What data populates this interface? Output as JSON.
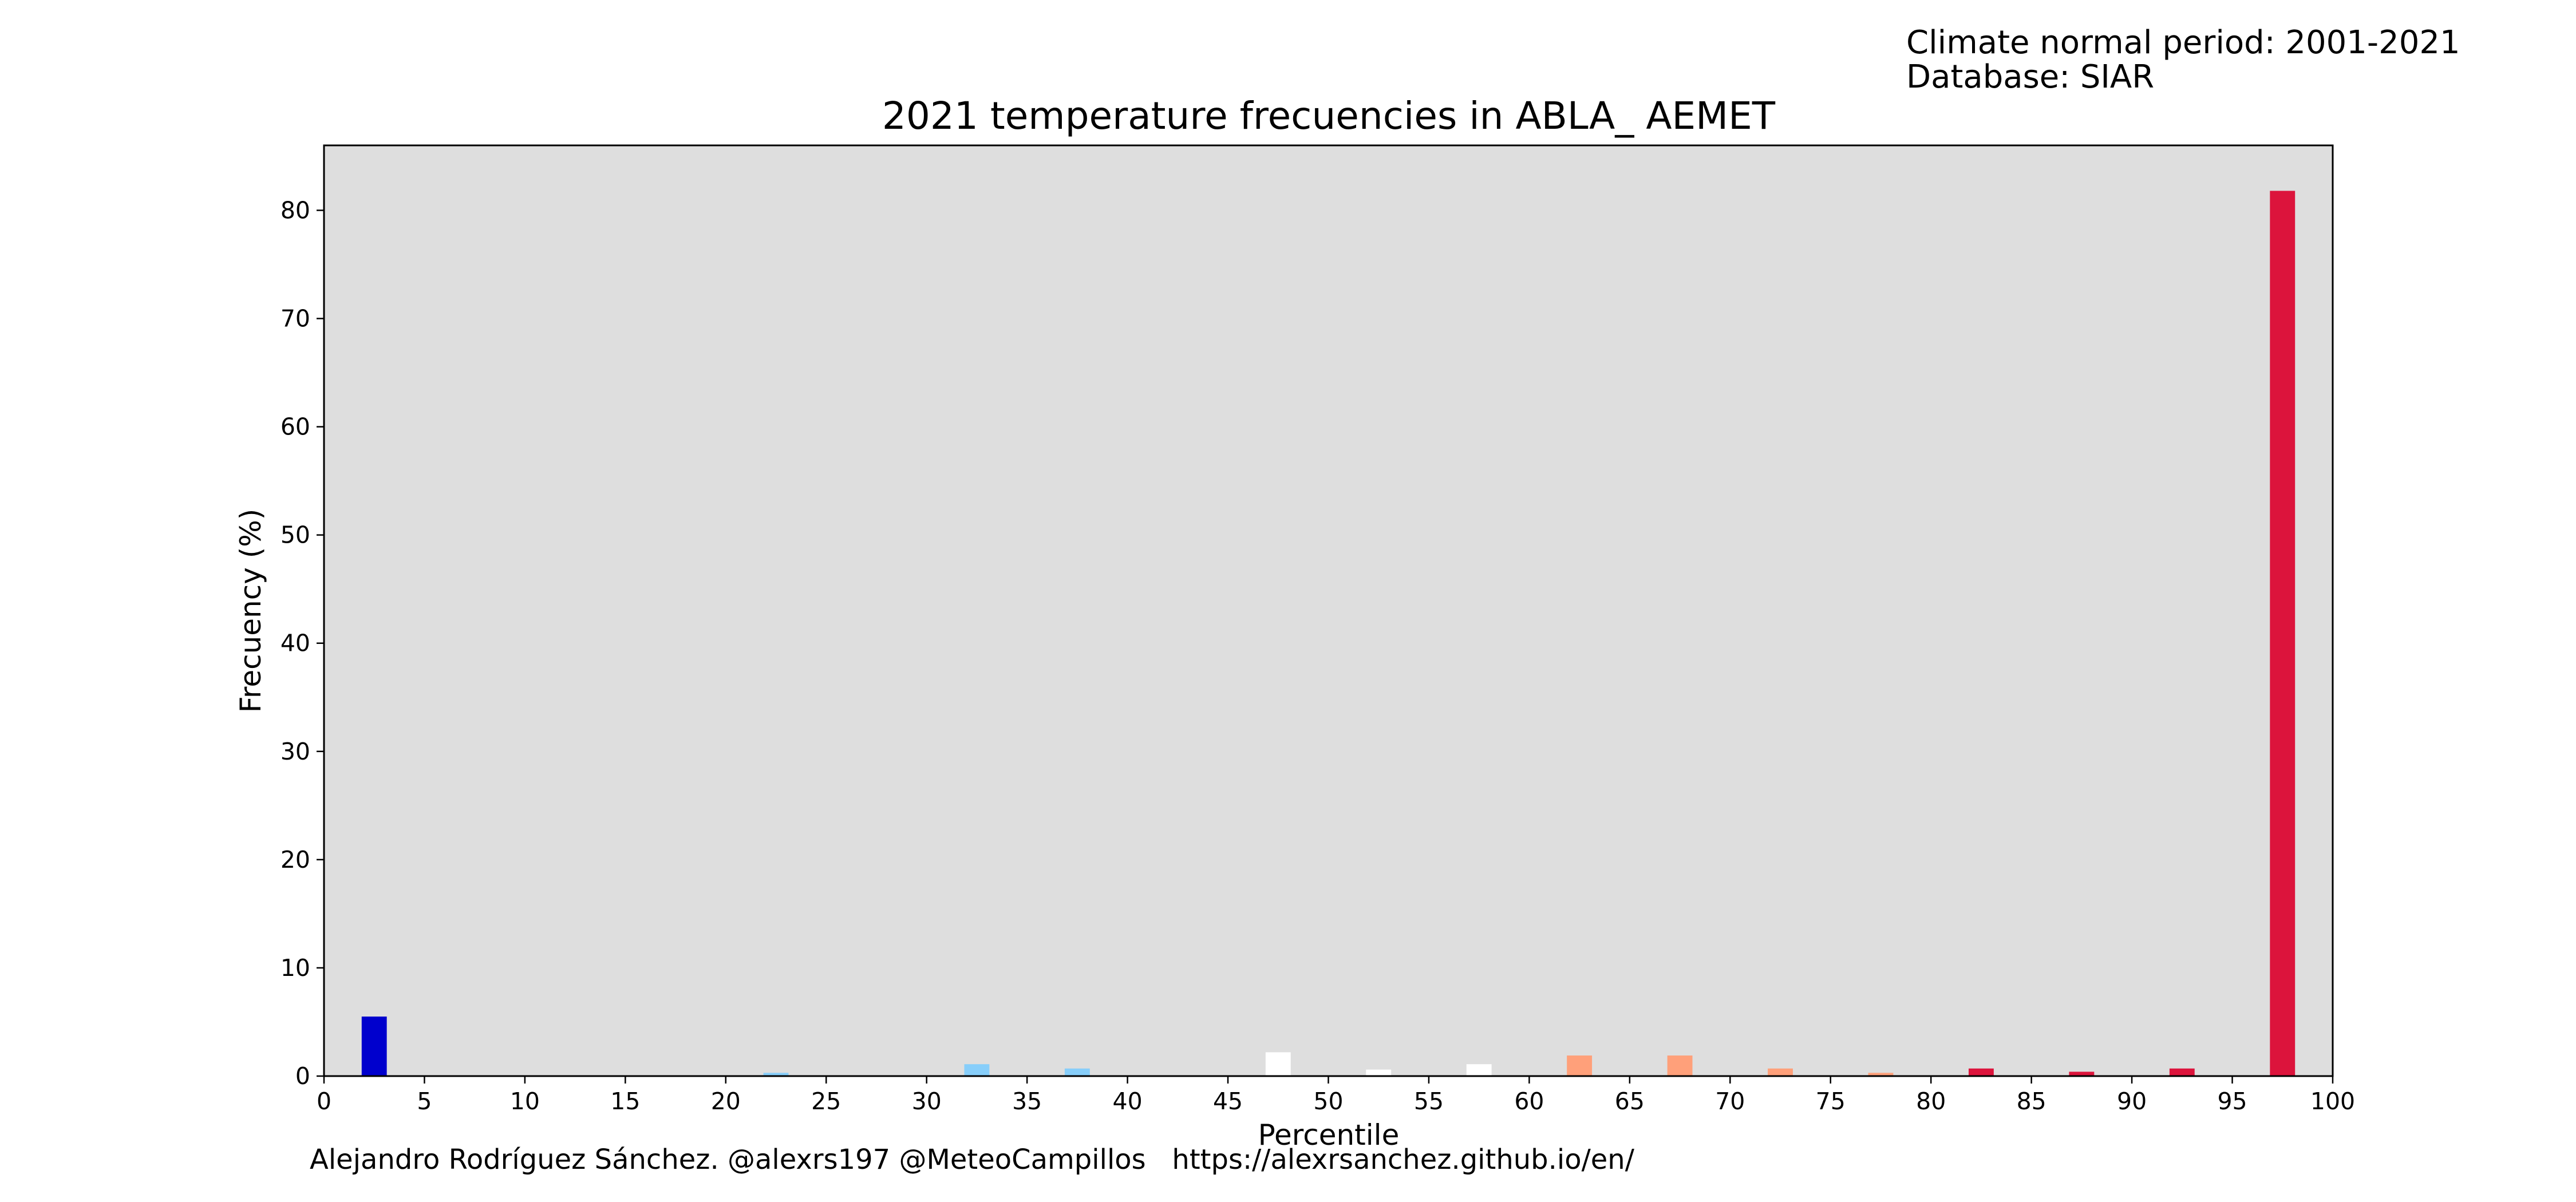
{
  "info": {
    "period_line": "Climate normal period: 2001-2021",
    "database_line": "Database: SIAR"
  },
  "footer": {
    "credit": "Alejandro Rodríguez Sánchez. @alexrs197 @MeteoCampillos   https://alexrsanchez.github.io/en/"
  },
  "colors": {
    "plot_background": "#dedede",
    "very_cold": "#0000cd",
    "cold": "#87cefa",
    "normal": "#ffffff",
    "warm": "#ffa07a",
    "very_warm": "#dc143c"
  },
  "chart_data": {
    "type": "bar",
    "title": "2021 temperature frecuencies in ABLA_ AEMET",
    "xlabel": "Percentile",
    "ylabel": "Frecuency (%)",
    "xlim": [
      0,
      100
    ],
    "ylim": [
      0,
      86
    ],
    "grid": false,
    "x_ticks": [
      0,
      5,
      10,
      15,
      20,
      25,
      30,
      35,
      40,
      45,
      50,
      55,
      60,
      65,
      70,
      75,
      80,
      85,
      90,
      95,
      100
    ],
    "y_ticks": [
      0,
      10,
      20,
      30,
      40,
      50,
      60,
      70,
      80
    ],
    "bar_width": 1.25,
    "bars": [
      {
        "x": 2.5,
        "value": 5.5,
        "color": "#0000cd"
      },
      {
        "x": 7.5,
        "value": 0,
        "color": "#0000cd"
      },
      {
        "x": 12.5,
        "value": 0,
        "color": "#0000cd"
      },
      {
        "x": 17.5,
        "value": 0,
        "color": "#87cefa"
      },
      {
        "x": 22.5,
        "value": 0.3,
        "color": "#87cefa"
      },
      {
        "x": 27.5,
        "value": 0,
        "color": "#87cefa"
      },
      {
        "x": 32.5,
        "value": 1.1,
        "color": "#87cefa"
      },
      {
        "x": 37.5,
        "value": 0.7,
        "color": "#87cefa"
      },
      {
        "x": 42.5,
        "value": 0,
        "color": "#ffffff"
      },
      {
        "x": 47.5,
        "value": 2.2,
        "color": "#ffffff"
      },
      {
        "x": 52.5,
        "value": 0.6,
        "color": "#ffffff"
      },
      {
        "x": 57.5,
        "value": 1.1,
        "color": "#ffffff"
      },
      {
        "x": 62.5,
        "value": 1.9,
        "color": "#ffa07a"
      },
      {
        "x": 67.5,
        "value": 1.9,
        "color": "#ffa07a"
      },
      {
        "x": 72.5,
        "value": 0.7,
        "color": "#ffa07a"
      },
      {
        "x": 77.5,
        "value": 0.3,
        "color": "#ffa07a"
      },
      {
        "x": 82.5,
        "value": 0.7,
        "color": "#dc143c"
      },
      {
        "x": 87.5,
        "value": 0.4,
        "color": "#dc143c"
      },
      {
        "x": 92.5,
        "value": 0.7,
        "color": "#dc143c"
      },
      {
        "x": 97.5,
        "value": 81.8,
        "color": "#dc143c"
      }
    ]
  }
}
